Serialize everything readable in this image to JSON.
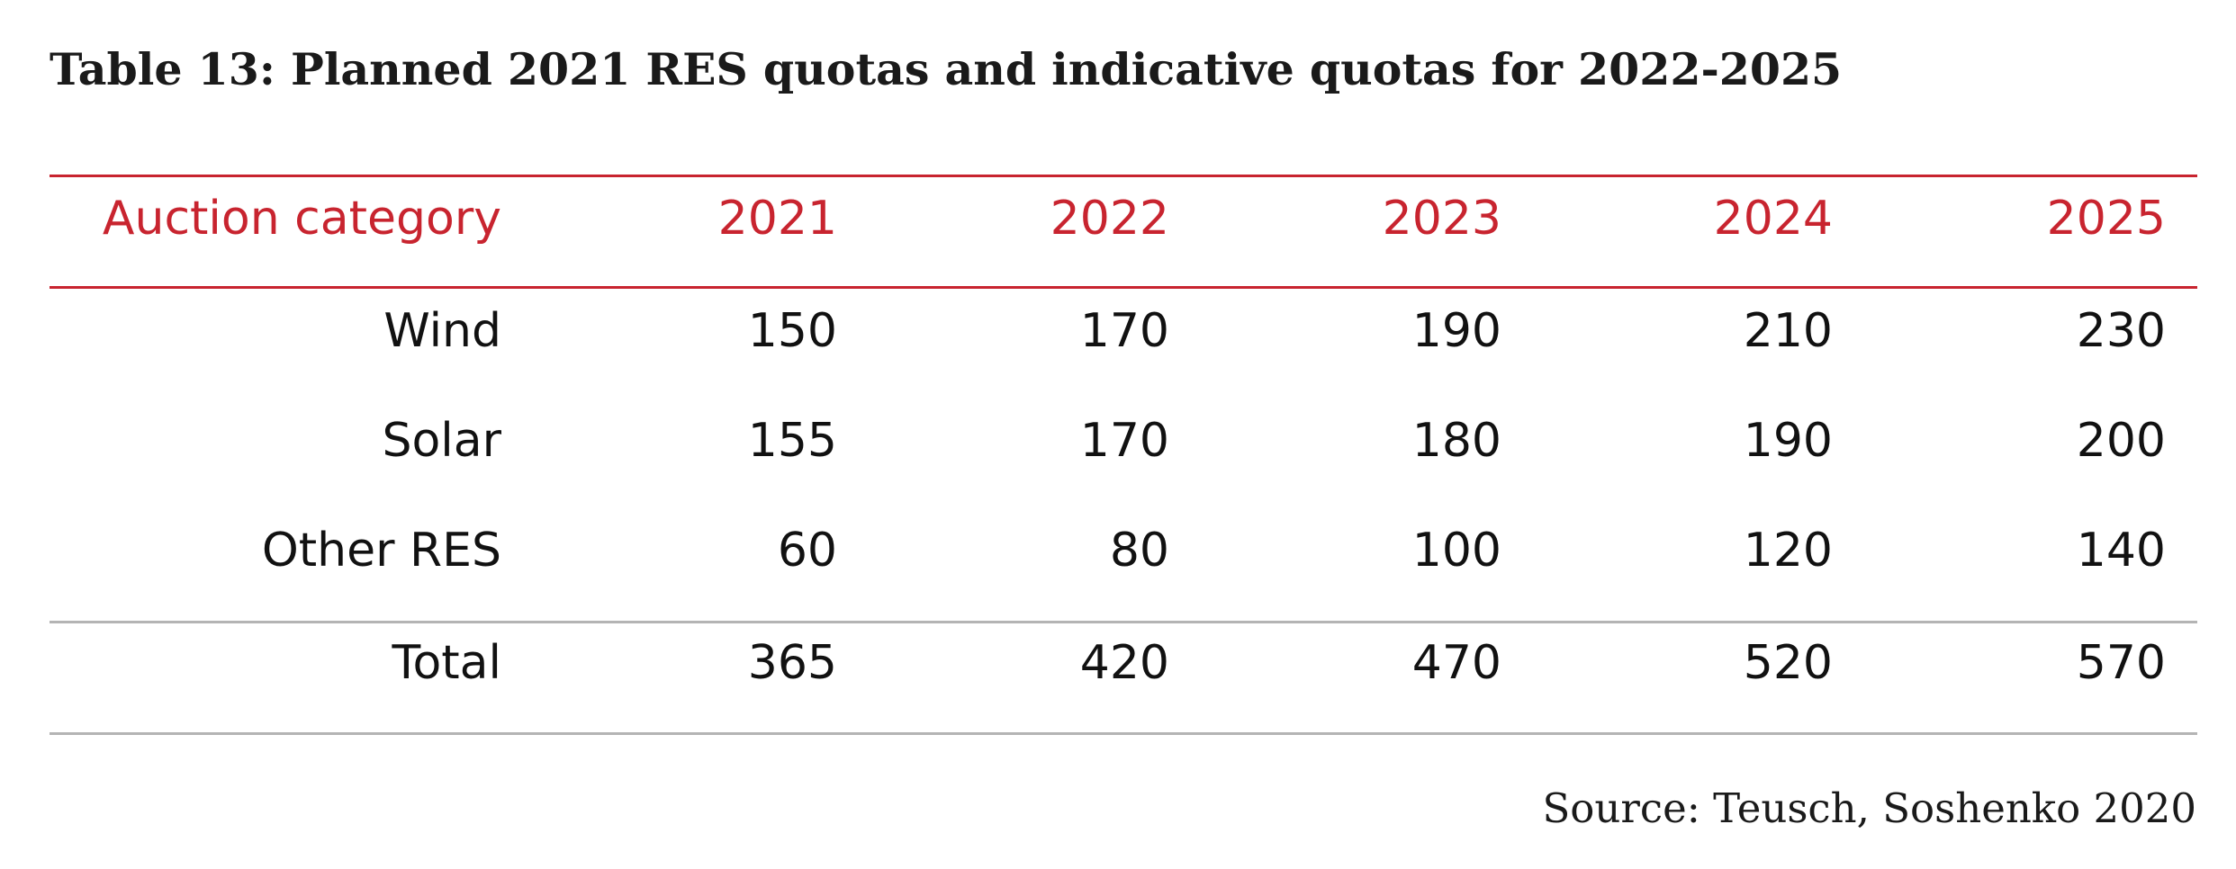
{
  "title": "Table 13: Planned 2021 RES quotas and indicative quotas for 2022-2025",
  "table": {
    "headers": [
      "Auction category",
      "2021",
      "2022",
      "2023",
      "2024",
      "2025"
    ],
    "rows": [
      [
        "Wind",
        "150",
        "170",
        "190",
        "210",
        "230"
      ],
      [
        "Solar",
        "155",
        "170",
        "180",
        "190",
        "200"
      ],
      [
        "Other RES",
        "60",
        "80",
        "100",
        "120",
        "140"
      ]
    ],
    "total": [
      "Total",
      "365",
      "420",
      "470",
      "520",
      "570"
    ]
  },
  "source": "Source: Teusch, Soshenko 2020",
  "colors": {
    "accent": "#c8242f",
    "divider": "#b4b4b4",
    "text": "#111111"
  }
}
